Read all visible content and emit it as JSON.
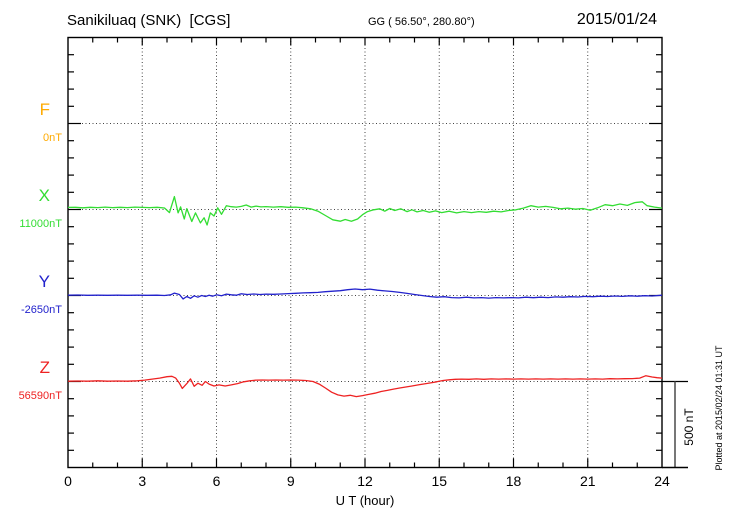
{
  "header": {
    "title": "Sanikiluaq (SNK)  [CGS]",
    "gg_coords": "GG ( 56.50°, 280.80°)",
    "date": "2015/01/24"
  },
  "x_axis": {
    "label": "U T (hour)",
    "ticks": [
      "0",
      "3",
      "6",
      "9",
      "12",
      "15",
      "18",
      "21",
      "24"
    ],
    "range_hours": [
      0,
      24
    ],
    "minor_step_hours": 1
  },
  "y_axis": {
    "minor_step_nT": 100,
    "major_step_nT": 500
  },
  "scale_bar": {
    "label": "500 nT"
  },
  "plotted_note": "Plotted at 2015/02/24 01:31 UT",
  "colors": {
    "F": "#FFAA00",
    "X": "#33DD33",
    "Y": "#2222CC",
    "Z": "#EE2222",
    "frame": "#000000",
    "grid": "#444444"
  },
  "chart_data": {
    "type": "line",
    "title": "Sanikiluaq (SNK) [CGS] magnetogram for 2015/01/24",
    "xlabel": "U T (hour)",
    "x_range": [
      0,
      24
    ],
    "grid": "dotted vertical lines every 3 hours; dotted horizontal line at each trace baseline",
    "scale": "500 nT per 5 minor divisions (minor tick = 100 nT)",
    "legend_position": "left margin",
    "series": [
      {
        "name": "F",
        "baseline_label": "0nT",
        "color": "#FFAA00",
        "points": []
      },
      {
        "name": "X",
        "baseline_label": "11000nT",
        "color": "#33DD33",
        "points": [
          [
            0,
            12
          ],
          [
            0.3,
            13
          ],
          [
            0.6,
            10
          ],
          [
            0.9,
            13
          ],
          [
            1.2,
            11
          ],
          [
            1.5,
            14
          ],
          [
            1.8,
            11
          ],
          [
            2.1,
            13
          ],
          [
            2.4,
            11
          ],
          [
            2.7,
            14
          ],
          [
            3.0,
            12
          ],
          [
            3.3,
            11
          ],
          [
            3.6,
            13
          ],
          [
            3.9,
            9
          ],
          [
            4.1,
            -18
          ],
          [
            4.3,
            75
          ],
          [
            4.45,
            -20
          ],
          [
            4.55,
            15
          ],
          [
            4.7,
            -55
          ],
          [
            4.8,
            5
          ],
          [
            5.0,
            -70
          ],
          [
            5.15,
            -20
          ],
          [
            5.35,
            -78
          ],
          [
            5.5,
            -48
          ],
          [
            5.62,
            -90
          ],
          [
            5.75,
            -20
          ],
          [
            5.9,
            -38
          ],
          [
            6.05,
            10
          ],
          [
            6.2,
            -28
          ],
          [
            6.4,
            22
          ],
          [
            6.6,
            16
          ],
          [
            6.8,
            14
          ],
          [
            7.0,
            18
          ],
          [
            7.2,
            26
          ],
          [
            7.4,
            14
          ],
          [
            7.6,
            20
          ],
          [
            7.8,
            15
          ],
          [
            8.0,
            17
          ],
          [
            8.3,
            14
          ],
          [
            8.6,
            16
          ],
          [
            8.9,
            13
          ],
          [
            9.2,
            14
          ],
          [
            9.5,
            10
          ],
          [
            9.8,
            4
          ],
          [
            10.1,
            -10
          ],
          [
            10.4,
            -35
          ],
          [
            10.7,
            -60
          ],
          [
            11.0,
            -68
          ],
          [
            11.2,
            -58
          ],
          [
            11.45,
            -68
          ],
          [
            11.7,
            -55
          ],
          [
            11.9,
            -30
          ],
          [
            12.1,
            -12
          ],
          [
            12.35,
            -2
          ],
          [
            12.6,
            4
          ],
          [
            12.8,
            -10
          ],
          [
            13.0,
            6
          ],
          [
            13.2,
            -6
          ],
          [
            13.45,
            4
          ],
          [
            13.7,
            -12
          ],
          [
            13.9,
            -2
          ],
          [
            14.1,
            -14
          ],
          [
            14.35,
            -6
          ],
          [
            14.6,
            -16
          ],
          [
            14.85,
            -8
          ],
          [
            15.1,
            -18
          ],
          [
            15.4,
            -10
          ],
          [
            15.7,
            -20
          ],
          [
            16.0,
            -12
          ],
          [
            16.3,
            -18
          ],
          [
            16.6,
            -12
          ],
          [
            16.9,
            -16
          ],
          [
            17.2,
            -10
          ],
          [
            17.5,
            -14
          ],
          [
            17.8,
            -6
          ],
          [
            18.1,
            -2
          ],
          [
            18.4,
            8
          ],
          [
            18.7,
            22
          ],
          [
            19.0,
            14
          ],
          [
            19.3,
            18
          ],
          [
            19.6,
            12
          ],
          [
            19.9,
            4
          ],
          [
            20.2,
            8
          ],
          [
            20.5,
            2
          ],
          [
            20.8,
            6
          ],
          [
            21.1,
            -4
          ],
          [
            21.4,
            10
          ],
          [
            21.7,
            28
          ],
          [
            22.0,
            22
          ],
          [
            22.3,
            32
          ],
          [
            22.6,
            24
          ],
          [
            22.9,
            40
          ],
          [
            23.2,
            45
          ],
          [
            23.4,
            22
          ],
          [
            23.7,
            14
          ],
          [
            24,
            8
          ]
        ]
      },
      {
        "name": "Y",
        "baseline_label": "-2650nT",
        "color": "#2222CC",
        "points": [
          [
            0,
            2
          ],
          [
            0.4,
            3
          ],
          [
            0.8,
            1
          ],
          [
            1.2,
            2
          ],
          [
            1.6,
            1
          ],
          [
            2.0,
            2
          ],
          [
            2.4,
            1
          ],
          [
            2.8,
            2
          ],
          [
            3.2,
            1
          ],
          [
            3.6,
            2
          ],
          [
            3.9,
            0
          ],
          [
            4.15,
            4
          ],
          [
            4.3,
            14
          ],
          [
            4.5,
            6
          ],
          [
            4.65,
            -20
          ],
          [
            4.8,
            -6
          ],
          [
            4.95,
            -16
          ],
          [
            5.1,
            -2
          ],
          [
            5.25,
            -10
          ],
          [
            5.4,
            0
          ],
          [
            5.55,
            -6
          ],
          [
            5.7,
            2
          ],
          [
            5.85,
            -4
          ],
          [
            6.0,
            4
          ],
          [
            6.2,
            -2
          ],
          [
            6.4,
            8
          ],
          [
            6.6,
            4
          ],
          [
            6.8,
            2
          ],
          [
            7.0,
            10
          ],
          [
            7.25,
            6
          ],
          [
            7.5,
            9
          ],
          [
            7.75,
            6
          ],
          [
            8.0,
            8
          ],
          [
            8.3,
            7
          ],
          [
            8.6,
            9
          ],
          [
            8.9,
            11
          ],
          [
            9.2,
            13
          ],
          [
            9.5,
            15
          ],
          [
            9.8,
            16
          ],
          [
            10.1,
            18
          ],
          [
            10.4,
            22
          ],
          [
            10.7,
            25
          ],
          [
            11.0,
            28
          ],
          [
            11.3,
            34
          ],
          [
            11.6,
            38
          ],
          [
            11.9,
            34
          ],
          [
            12.2,
            37
          ],
          [
            12.5,
            31
          ],
          [
            12.8,
            27
          ],
          [
            13.1,
            23
          ],
          [
            13.4,
            18
          ],
          [
            13.7,
            12
          ],
          [
            14.0,
            6
          ],
          [
            14.3,
            0
          ],
          [
            14.6,
            -6
          ],
          [
            14.9,
            -10
          ],
          [
            15.2,
            -7
          ],
          [
            15.5,
            -12
          ],
          [
            15.8,
            -14
          ],
          [
            16.1,
            -10
          ],
          [
            16.4,
            -14
          ],
          [
            16.7,
            -12
          ],
          [
            17.0,
            -15
          ],
          [
            17.3,
            -12
          ],
          [
            17.6,
            -14
          ],
          [
            17.9,
            -12
          ],
          [
            18.2,
            -14
          ],
          [
            18.5,
            -10
          ],
          [
            18.8,
            -13
          ],
          [
            19.1,
            -10
          ],
          [
            19.4,
            -12
          ],
          [
            19.7,
            -8
          ],
          [
            20.0,
            -10
          ],
          [
            20.3,
            -7
          ],
          [
            20.6,
            -9
          ],
          [
            20.9,
            -5
          ],
          [
            21.2,
            -7
          ],
          [
            21.5,
            -4
          ],
          [
            21.8,
            -6
          ],
          [
            22.1,
            -3
          ],
          [
            22.4,
            -5
          ],
          [
            22.7,
            -2
          ],
          [
            23.0,
            -4
          ],
          [
            23.3,
            -1
          ],
          [
            23.6,
            -3
          ],
          [
            24,
            2
          ]
        ]
      },
      {
        "name": "Z",
        "baseline_label": "56590nT",
        "color": "#EE2222",
        "points": [
          [
            0,
            2
          ],
          [
            0.4,
            3
          ],
          [
            0.8,
            2
          ],
          [
            1.2,
            4
          ],
          [
            1.6,
            2
          ],
          [
            2.0,
            3
          ],
          [
            2.4,
            2
          ],
          [
            2.8,
            4
          ],
          [
            3.1,
            8
          ],
          [
            3.4,
            14
          ],
          [
            3.7,
            20
          ],
          [
            4.0,
            28
          ],
          [
            4.2,
            30
          ],
          [
            4.35,
            20
          ],
          [
            4.5,
            -10
          ],
          [
            4.62,
            -40
          ],
          [
            4.8,
            -12
          ],
          [
            4.95,
            15
          ],
          [
            5.1,
            -28
          ],
          [
            5.25,
            -10
          ],
          [
            5.42,
            -22
          ],
          [
            5.55,
            0
          ],
          [
            5.7,
            -15
          ],
          [
            5.9,
            -26
          ],
          [
            6.1,
            -20
          ],
          [
            6.35,
            -26
          ],
          [
            6.6,
            -20
          ],
          [
            6.85,
            -12
          ],
          [
            7.1,
            -2
          ],
          [
            7.35,
            4
          ],
          [
            7.6,
            8
          ],
          [
            7.85,
            9
          ],
          [
            8.1,
            8
          ],
          [
            8.4,
            9
          ],
          [
            8.7,
            8
          ],
          [
            9.0,
            9
          ],
          [
            9.3,
            8
          ],
          [
            9.6,
            6
          ],
          [
            9.9,
            0
          ],
          [
            10.15,
            -15
          ],
          [
            10.4,
            -38
          ],
          [
            10.65,
            -62
          ],
          [
            10.9,
            -78
          ],
          [
            11.15,
            -85
          ],
          [
            11.4,
            -80
          ],
          [
            11.65,
            -88
          ],
          [
            11.9,
            -82
          ],
          [
            12.15,
            -75
          ],
          [
            12.4,
            -68
          ],
          [
            12.65,
            -58
          ],
          [
            12.9,
            -52
          ],
          [
            13.15,
            -44
          ],
          [
            13.4,
            -38
          ],
          [
            13.65,
            -32
          ],
          [
            13.9,
            -26
          ],
          [
            14.15,
            -20
          ],
          [
            14.4,
            -14
          ],
          [
            14.65,
            -8
          ],
          [
            14.9,
            -2
          ],
          [
            15.15,
            6
          ],
          [
            15.4,
            10
          ],
          [
            15.65,
            13
          ],
          [
            15.9,
            14
          ],
          [
            16.2,
            13
          ],
          [
            16.5,
            15
          ],
          [
            16.8,
            13
          ],
          [
            17.1,
            15
          ],
          [
            17.4,
            14
          ],
          [
            17.7,
            15
          ],
          [
            18.0,
            14
          ],
          [
            18.3,
            15
          ],
          [
            18.6,
            14
          ],
          [
            18.9,
            15
          ],
          [
            19.2,
            14
          ],
          [
            19.5,
            15
          ],
          [
            19.8,
            14
          ],
          [
            20.1,
            15
          ],
          [
            20.4,
            14
          ],
          [
            20.7,
            15
          ],
          [
            21.0,
            14
          ],
          [
            21.3,
            15
          ],
          [
            21.6,
            14
          ],
          [
            21.9,
            16
          ],
          [
            22.2,
            15
          ],
          [
            22.5,
            16
          ],
          [
            22.8,
            17
          ],
          [
            23.1,
            20
          ],
          [
            23.35,
            34
          ],
          [
            23.6,
            26
          ],
          [
            23.8,
            22
          ],
          [
            24,
            20
          ]
        ]
      }
    ]
  }
}
